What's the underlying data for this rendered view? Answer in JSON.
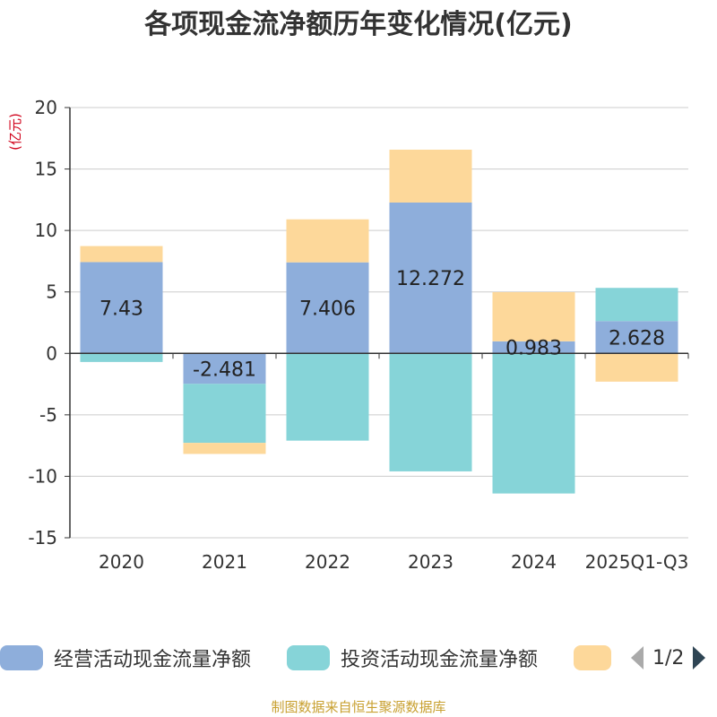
{
  "chart_data": {
    "type": "bar",
    "stacked": true,
    "title": "各项现金流净额历年变化情况(亿元)",
    "ylabel": "(亿元)",
    "xlabel": "",
    "ylim": [
      -15,
      20
    ],
    "yticks": [
      20,
      15,
      10,
      5,
      0,
      -5,
      -10,
      -15
    ],
    "categories": [
      "2020",
      "2021",
      "2022",
      "2023",
      "2024",
      "2025Q1-Q3"
    ],
    "series": [
      {
        "name": "经营活动现金流量净额",
        "color": "#8eaedb",
        "values": [
          7.43,
          -2.481,
          7.406,
          12.272,
          0.983,
          2.628
        ],
        "labels": [
          "7.43",
          "-2.481",
          "7.406",
          "12.272",
          "0.983",
          "2.628"
        ]
      },
      {
        "name": "投资活动现金流量净额",
        "color": "#86d4d8",
        "values": [
          -0.7,
          -4.8,
          -7.1,
          -9.6,
          -11.4,
          2.7
        ]
      },
      {
        "name": "",
        "color": "#fdd89a",
        "values": [
          1.3,
          -0.9,
          3.5,
          4.3,
          4.0,
          -2.3
        ]
      }
    ]
  },
  "legend": {
    "items": [
      "经营活动现金流量净额",
      "投资活动现金流量净额",
      ""
    ],
    "page": "1/2"
  },
  "colors": {
    "title": "#333333",
    "axis": "#333333",
    "grid": "#cccccc",
    "ylabel": "#d0021b",
    "source": "#c8a030"
  },
  "source": "制图数据来自恒生聚源数据库"
}
